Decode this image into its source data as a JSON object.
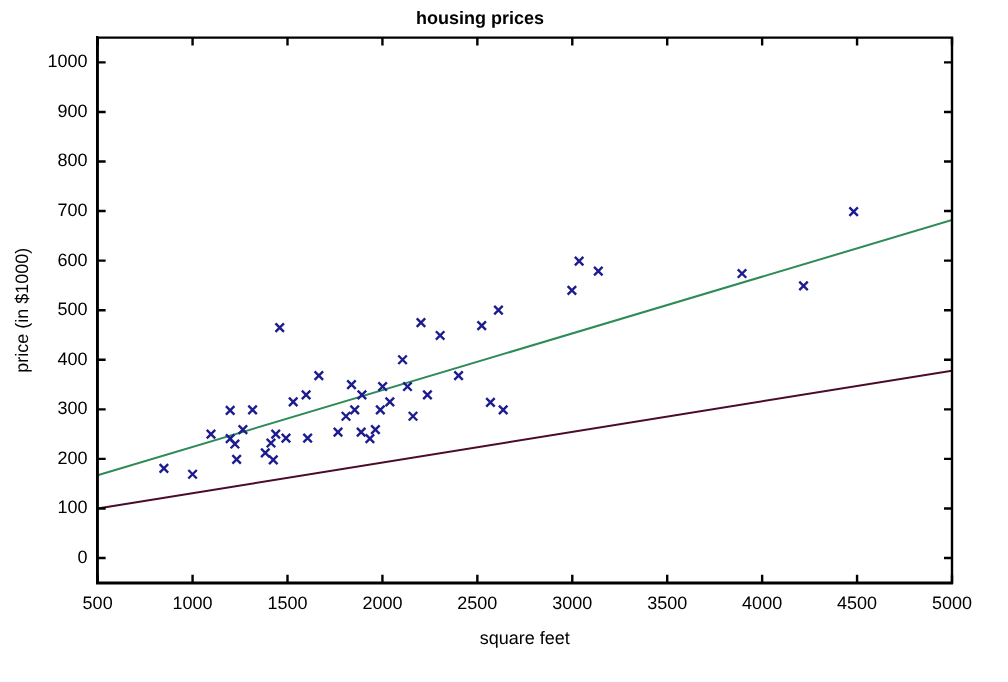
{
  "chart_data": {
    "type": "scatter",
    "title": "housing prices",
    "xlabel": "square feet",
    "ylabel": "price (in $1000)",
    "xlim": [
      500,
      5000
    ],
    "xticks": [
      500,
      1000,
      1500,
      2000,
      2500,
      3000,
      3500,
      4000,
      4500,
      5000
    ],
    "ylim": [
      -50,
      1050
    ],
    "yticks": [
      0,
      100,
      200,
      300,
      400,
      500,
      600,
      700,
      800,
      900,
      1000
    ],
    "grid": false,
    "legend": false,
    "marker": "cross",
    "series": [
      {
        "color": "#1c1c8f",
        "x": [
          849,
          1000,
          1097,
          1198,
          1198,
          1223,
          1232,
          1265,
          1316,
          1383,
          1413,
          1425,
          1438,
          1459,
          1492,
          1530,
          1598,
          1606,
          1665,
          1766,
          1808,
          1837,
          1854,
          1888,
          1892,
          1934,
          1963,
          1989,
          2001,
          2039,
          2106,
          2132,
          2161,
          2203,
          2237,
          2304,
          2401,
          2523,
          2569,
          2611,
          2636,
          2998,
          3036,
          3137,
          3894,
          4218,
          4482
        ],
        "values": [
          181,
          169,
          250,
          298,
          241,
          230,
          199,
          259,
          299,
          212,
          232,
          198,
          250,
          465,
          242,
          315,
          329,
          242,
          368,
          254,
          286,
          350,
          299,
          254,
          329,
          241,
          259,
          299,
          346,
          315,
          400,
          346,
          286,
          475,
          329,
          449,
          368,
          469,
          314,
          500,
          299,
          540,
          599,
          579,
          574,
          549,
          699
        ]
      },
      {
        "type": "line",
        "color": "#2e8b57",
        "marker": "none",
        "line_style": "solid",
        "x": [
          500,
          5000
        ],
        "values": [
          167,
          682
        ]
      },
      {
        "type": "line",
        "color": "#4a0a2a",
        "marker": "none",
        "line_style": "solid",
        "x": [
          500,
          5000
        ],
        "values": [
          100,
          378
        ]
      }
    ]
  }
}
